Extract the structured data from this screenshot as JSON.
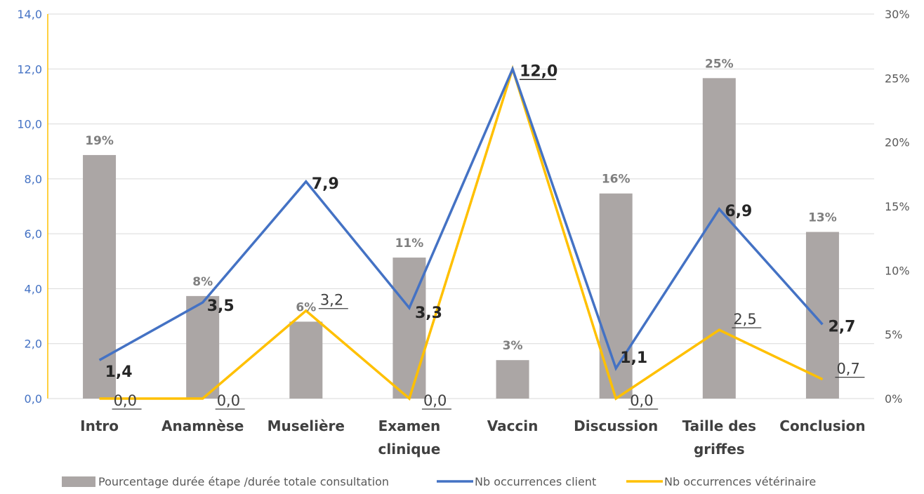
{
  "chart_data": {
    "type": "bar+line",
    "categories": [
      "Intro",
      "Anamnèse",
      "Muselière",
      "Examen clinique",
      "Vaccin",
      "Discussion",
      "Taille des griffes",
      "Conclusion"
    ],
    "category_lines": [
      [
        "Intro"
      ],
      [
        "Anamnèse"
      ],
      [
        "Muselière"
      ],
      [
        "Examen",
        "clinique"
      ],
      [
        "Vaccin"
      ],
      [
        "Discussion"
      ],
      [
        "Taille des",
        "griffes"
      ],
      [
        "Conclusion"
      ]
    ],
    "left_axis": {
      "ylim": [
        0,
        14
      ],
      "ticks": [
        "0,0",
        "2,0",
        "4,0",
        "6,0",
        "8,0",
        "10,0",
        "12,0",
        "14,0"
      ]
    },
    "right_axis": {
      "ylim": [
        0,
        30
      ],
      "ticks": [
        "0%",
        "5%",
        "10%",
        "15%",
        "20%",
        "25%",
        "30%"
      ]
    },
    "series": [
      {
        "name": "Pourcentage durée étape /durée totale consultation",
        "type": "bar",
        "axis": "right",
        "color": "#ABA6A5",
        "values": [
          19,
          8,
          6,
          11,
          3,
          16,
          25,
          13
        ],
        "labels": [
          "19%",
          "8%",
          "6%",
          "11%",
          "3%",
          "16%",
          "25%",
          "13%"
        ]
      },
      {
        "name": "Nb occurrences client",
        "type": "line",
        "axis": "left",
        "color": "#4472C4",
        "values": [
          1.4,
          3.5,
          7.9,
          3.3,
          12.0,
          1.1,
          6.9,
          2.7
        ],
        "labels": [
          "1,4",
          "3,5",
          "7,9",
          "3,3",
          "12,0",
          "1,1",
          "6,9",
          "2,7"
        ]
      },
      {
        "name": "Nb occurrences  vétérinaire",
        "type": "line",
        "axis": "left",
        "color": "#FFC000",
        "values": [
          0.0,
          0.0,
          3.2,
          0.0,
          12.0,
          0.0,
          2.5,
          0.7
        ],
        "labels": [
          "0,0",
          "0,0",
          "3,2",
          "0,0",
          "",
          "0,0",
          "2,5",
          "0,7"
        ]
      }
    ],
    "grid": true,
    "legend_position": "bottom"
  }
}
